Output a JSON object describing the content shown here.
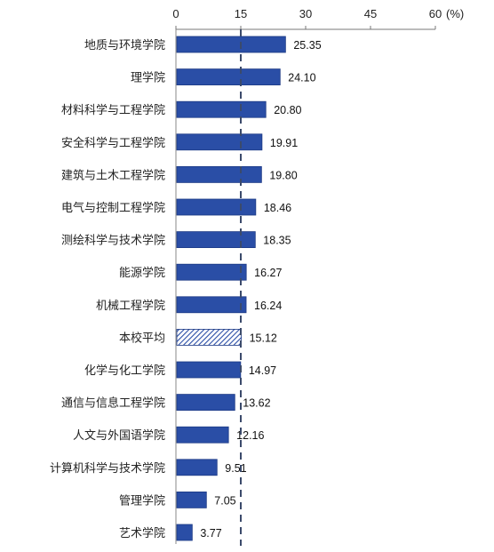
{
  "chart_data": {
    "type": "bar",
    "orientation": "horizontal",
    "categories": [
      "地质与环境学院",
      "理学院",
      "材料科学与工程学院",
      "安全科学与工程学院",
      "建筑与土木工程学院",
      "电气与控制工程学院",
      "测绘科学与技术学院",
      "能源学院",
      "机械工程学院",
      "本校平均",
      "化学与化工学院",
      "通信与信息工程学院",
      "人文与外国语学院",
      "计算机科学与技术学院",
      "管理学院",
      "艺术学院"
    ],
    "values": [
      25.35,
      24.1,
      20.8,
      19.91,
      19.8,
      18.46,
      18.35,
      16.27,
      16.24,
      15.12,
      14.97,
      13.62,
      12.16,
      9.51,
      7.05,
      3.77
    ],
    "value_labels": [
      "25.35",
      "24.10",
      "20.80",
      "19.91",
      "19.80",
      "18.46",
      "18.35",
      "16.27",
      "16.24",
      "15.12",
      "14.97",
      "13.62",
      "12.16",
      "9.51",
      "7.05",
      "3.77"
    ],
    "highlight_category": "本校平均",
    "x_ticks": [
      "0",
      "15",
      "30",
      "45",
      "60"
    ],
    "x_unit": "(%)",
    "xlim": [
      0,
      60
    ],
    "axis_position": "top",
    "reference_line": {
      "value": 15,
      "style": "dashed"
    },
    "colors": {
      "bar": "#2a4ea6",
      "bar_edge": "#1d3a85",
      "average_hatch": "#2a4ea6",
      "reference_line": "#3b4a6b"
    }
  }
}
